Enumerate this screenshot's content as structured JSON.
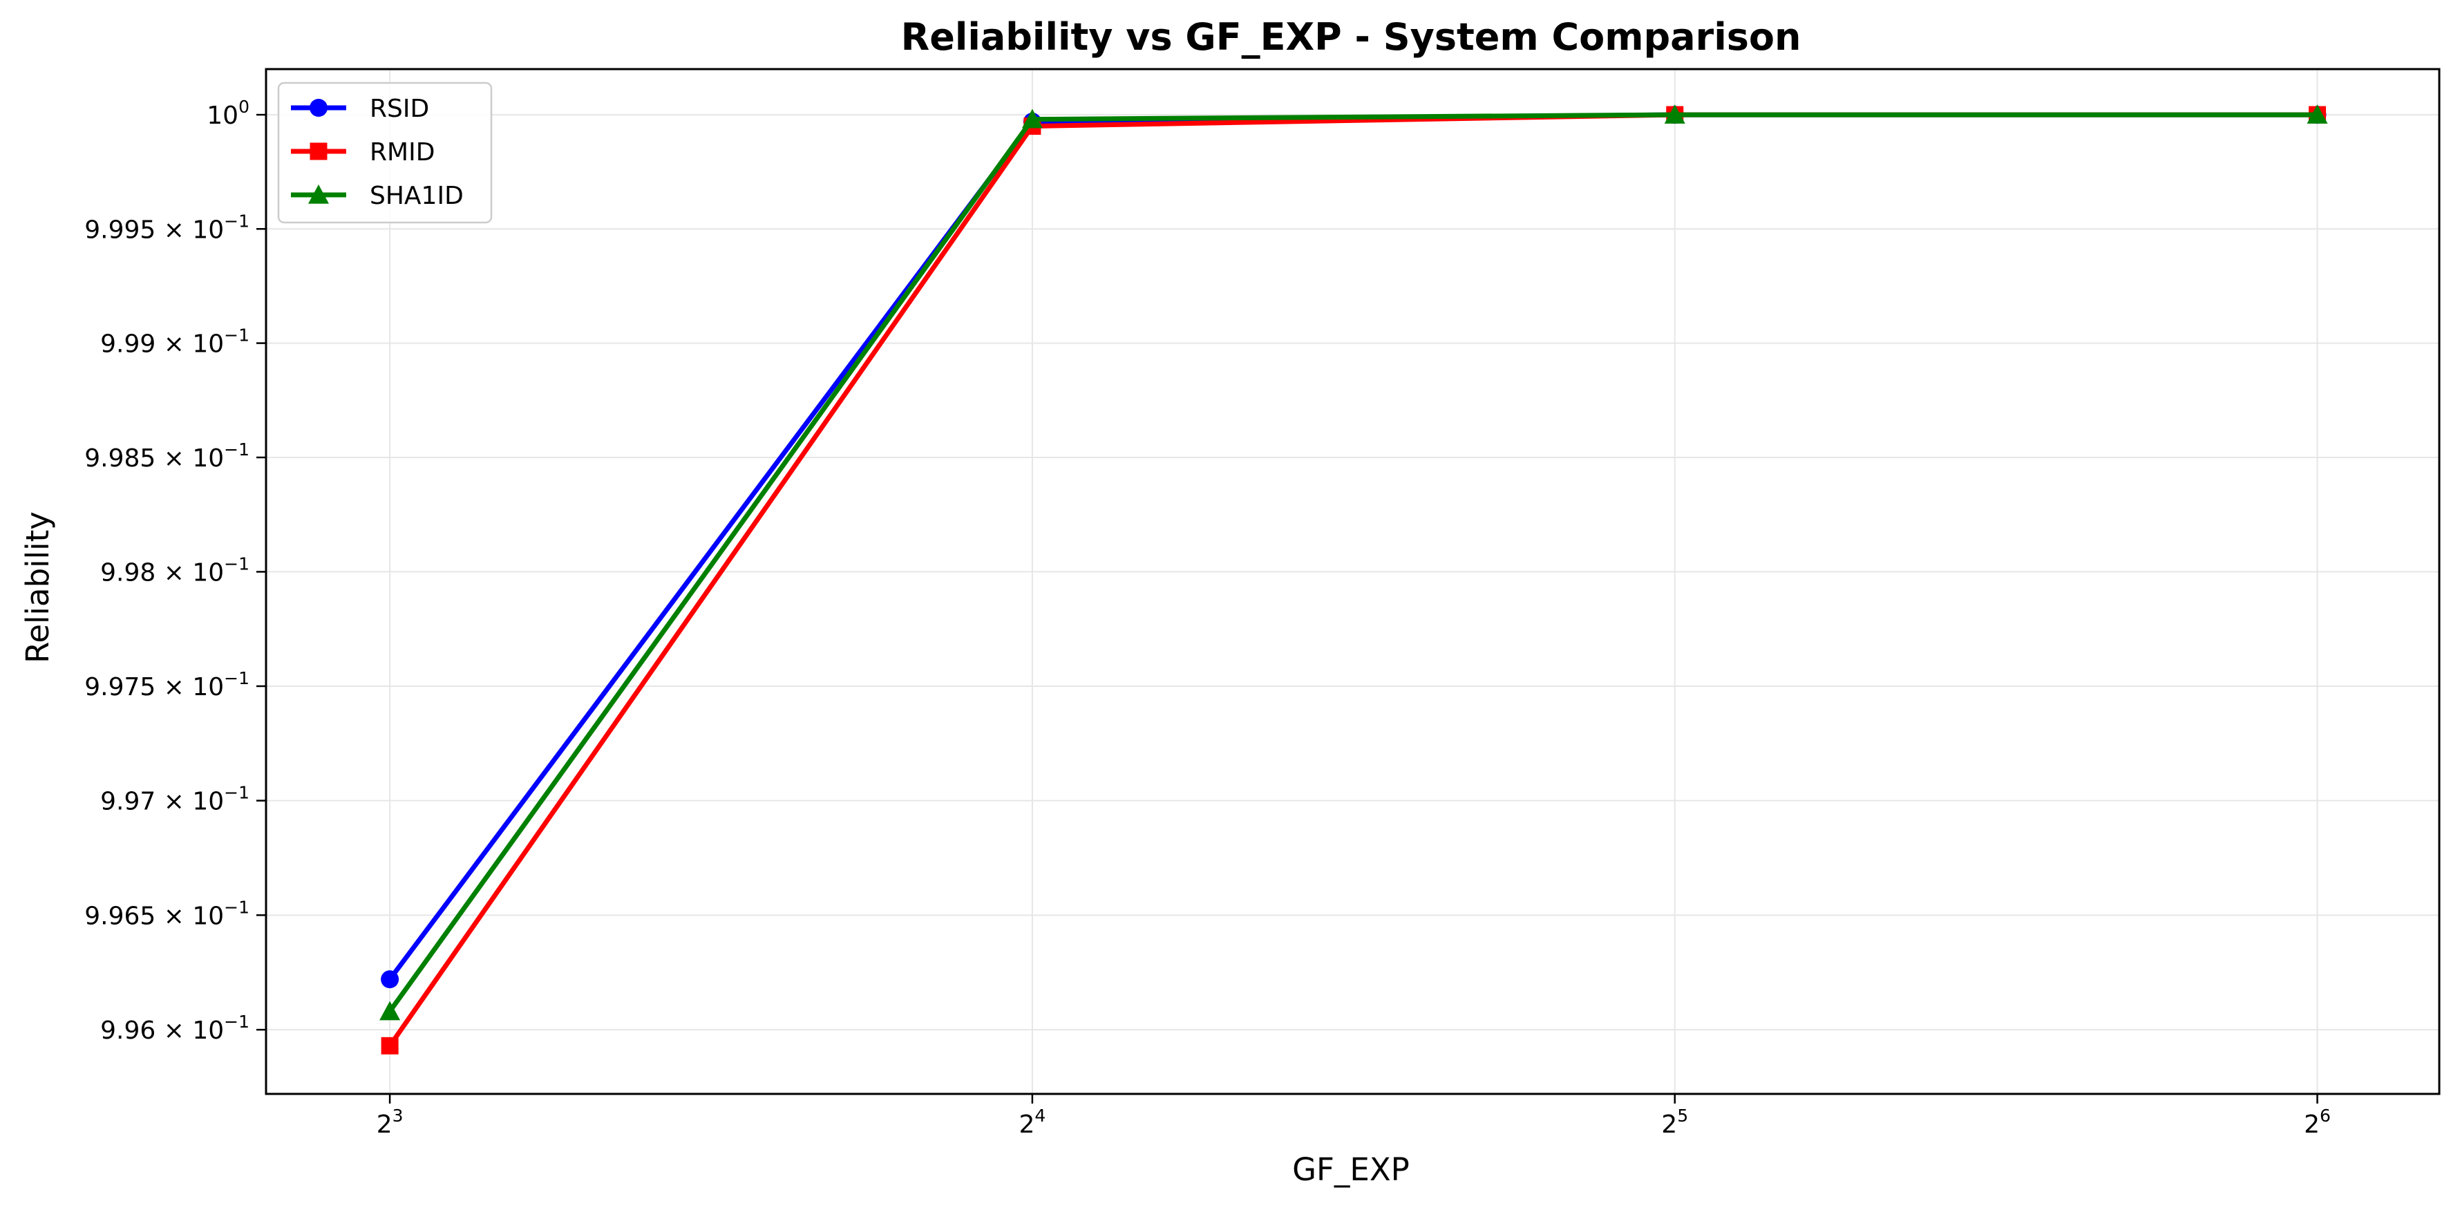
{
  "chart_data": {
    "type": "line",
    "title": "Reliability vs GF_EXP - System Comparison",
    "xlabel": "GF_EXP",
    "ylabel": "Reliability",
    "x_scale": "log2",
    "y_scale": "log",
    "x": [
      8,
      16,
      32,
      64
    ],
    "x_ticks": [
      {
        "base": "2",
        "exp": "3",
        "value": 8
      },
      {
        "base": "2",
        "exp": "4",
        "value": 16
      },
      {
        "base": "2",
        "exp": "5",
        "value": 32
      },
      {
        "base": "2",
        "exp": "6",
        "value": 64
      }
    ],
    "y_ticks": [
      {
        "mantissa": "9.96",
        "exp": "−1",
        "value": 0.996
      },
      {
        "mantissa": "9.965",
        "exp": "−1",
        "value": 0.9965
      },
      {
        "mantissa": "9.97",
        "exp": "−1",
        "value": 0.997
      },
      {
        "mantissa": "9.975",
        "exp": "−1",
        "value": 0.9975
      },
      {
        "mantissa": "9.98",
        "exp": "−1",
        "value": 0.998
      },
      {
        "mantissa": "9.985",
        "exp": "−1",
        "value": 0.9985
      },
      {
        "mantissa": "9.99",
        "exp": "−1",
        "value": 0.999
      },
      {
        "mantissa": "9.995",
        "exp": "−1",
        "value": 0.9995
      },
      {
        "mantissa": "10",
        "exp": "0",
        "value": 1.0
      }
    ],
    "ylim": [
      0.99572,
      1.0002
    ],
    "xlim": [
      7.0,
      73.0
    ],
    "grid": true,
    "legend_position": "top-left",
    "series": [
      {
        "name": "RSID",
        "color": "#0000ff",
        "marker": "circle",
        "values": [
          0.99622,
          0.99997,
          1.0,
          1.0
        ]
      },
      {
        "name": "RMID",
        "color": "#ff0000",
        "marker": "square",
        "values": [
          0.99593,
          0.99995,
          1.0,
          1.0
        ]
      },
      {
        "name": "SHA1ID",
        "color": "#008000",
        "marker": "triangle",
        "values": [
          0.99608,
          0.99998,
          1.0,
          1.0
        ]
      }
    ]
  }
}
